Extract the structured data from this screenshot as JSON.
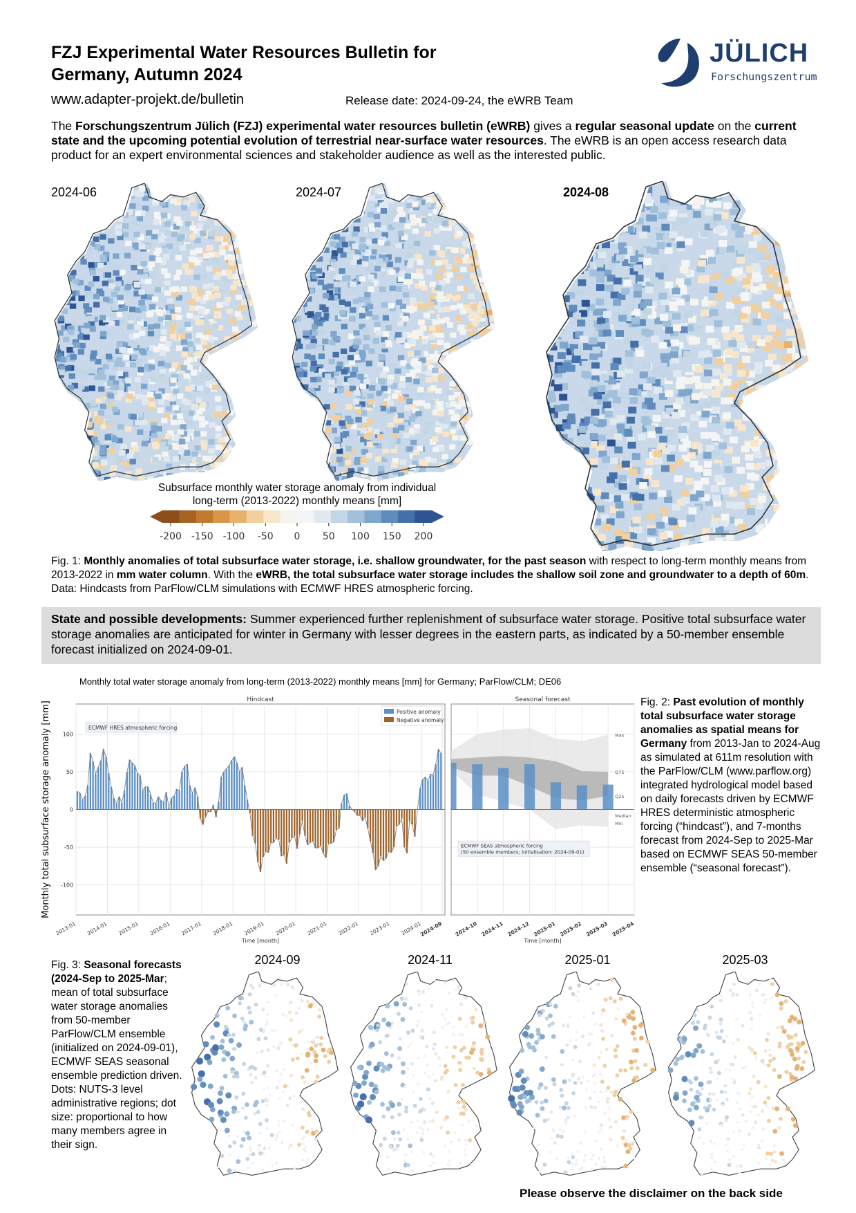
{
  "header": {
    "title_line1": "FZJ Experimental Water Resources Bulletin for",
    "title_line2": "Germany, Autumn 2024",
    "url": "www.adapter-projekt.de/bulletin",
    "release": "Release date: 2024-09-24, the eWRB Team",
    "logo": {
      "name": "JÜLICH",
      "sub": "Forschungszentrum",
      "color": "#1f3d6e"
    }
  },
  "intro": [
    {
      "t": "The ",
      "b": false
    },
    {
      "t": "Forschungszentrum Jülich (FZJ) experimental water resources bulletin (eWRB)",
      "b": true
    },
    {
      "t": " gives a ",
      "b": false
    },
    {
      "t": "regular seasonal update",
      "b": true
    },
    {
      "t": " on the ",
      "b": false
    },
    {
      "t": "current state and the upcoming potential evolution of terrestrial near-surface water resources",
      "b": true
    },
    {
      "t": ". The eWRB is an open access research data product for an expert environmental sciences and stakeholder audience as well as the interested public.",
      "b": false
    }
  ],
  "maps": [
    {
      "label": "2024-06",
      "bold": false
    },
    {
      "label": "2024-07",
      "bold": false
    },
    {
      "label": "2024-08",
      "bold": true
    }
  ],
  "colorbar": {
    "title_line1": "Subsurface monthly water storage anomaly from individual",
    "title_line2": "long-term (2013-2022) monthly means [mm]",
    "ticks": [
      "-200",
      "-150",
      "-100",
      "-50",
      "0",
      "50",
      "100",
      "150",
      "200"
    ],
    "colors": [
      "#8c4f1b",
      "#a8621f",
      "#c17a30",
      "#d99548",
      "#e8b26e",
      "#f2cf9c",
      "#f8e6cc",
      "#f6f4ef",
      "#f3f5f7",
      "#e0e8f0",
      "#c2d6e6",
      "#a0c0dc",
      "#7fa6cd",
      "#5f8bbd",
      "#446fa8",
      "#2f5494"
    ]
  },
  "fig1": [
    {
      "t": "Fig. 1: ",
      "b": false
    },
    {
      "t": "Monthly anomalies of total subsurface water storage, i.e. shallow groundwater, for the past season",
      "b": true
    },
    {
      "t": " with respect to long-term monthly means from 2013-2022 in ",
      "b": false
    },
    {
      "t": "mm water column",
      "b": true
    },
    {
      "t": ". With the ",
      "b": false
    },
    {
      "t": "eWRB, the total subsurface water storage includes the shallow soil zone and groundwater to a depth of 60m",
      "b": true
    },
    {
      "t": ". Data: Hindcasts from ParFlow/CLM simulations with ECMWF HRES atmospheric forcing.",
      "b": false
    }
  ],
  "state": [
    {
      "t": "State and possible developments:",
      "b": true
    },
    {
      "t": " Summer experienced further replenishment of subsurface water storage. Positive total subsurface water storage anomalies are anticipated for winter in Germany with lesser degrees in the eastern parts, as indicated by a 50-member ensemble forecast initialized on 2024-09-01.",
      "b": false
    }
  ],
  "chart_data": {
    "type": "bar",
    "title": "Monthly total water storage anomaly from long-term (2013-2022) monthly means [mm] for Germany; ParFlow/CLM; DE06",
    "ylabel": "Monthly total subsurface storage anomaly [mm]",
    "xlabel": "Time [month]",
    "ylim": [
      -140,
      140
    ],
    "yticks": [
      "100",
      "50",
      "0",
      "-50",
      "-100"
    ],
    "grid": true,
    "colors": {
      "positive": "#5b8fc7",
      "negative": "#a0642a",
      "band_outer": "#e3e3e3",
      "band_inner": "#a9a9a9",
      "forecast_bar": "#5b8fc7"
    },
    "hindcast": {
      "panel_title": "Hindcast",
      "annotation": "ECMWF HRES atmospheric forcing",
      "legend": [
        "Positive anomaly",
        "Negative anomaly"
      ],
      "legend_placement": "top-right",
      "xticks": [
        "2013-01",
        "2014-01",
        "2015-01",
        "2016-01",
        "2017-01",
        "2018-01",
        "2019-01",
        "2020-01",
        "2021-01",
        "2022-01",
        "2023-01",
        "2024-01",
        "2024-09"
      ],
      "monthly_values_by_year": {
        "2013": [
          24,
          22,
          13,
          18,
          32,
          75,
          64,
          47,
          56,
          65,
          80,
          70
        ],
        "2014": [
          48,
          30,
          15,
          8,
          17,
          9,
          25,
          50,
          66,
          62,
          58,
          48
        ],
        "2015": [
          45,
          25,
          30,
          30,
          20,
          9,
          8,
          17,
          12,
          10,
          23,
          3
        ],
        "2016": [
          15,
          18,
          27,
          25,
          50,
          57,
          60,
          32,
          22,
          29,
          17,
          -12
        ],
        "2017": [
          -20,
          -10,
          -3,
          -3,
          6,
          -10,
          10,
          43,
          50,
          54,
          58,
          65
        ],
        "2018": [
          70,
          62,
          50,
          56,
          32,
          13,
          -5,
          -35,
          -45,
          -70,
          -83,
          -63
        ],
        "2019": [
          -56,
          -57,
          -44,
          -44,
          -38,
          -40,
          -62,
          -60,
          -72,
          -44,
          -38,
          -35
        ],
        "2020": [
          -52,
          -33,
          -15,
          -35,
          -47,
          -44,
          -42,
          -51,
          -51,
          -48,
          -58,
          -64
        ],
        "2021": [
          -45,
          -45,
          -43,
          -27,
          -25,
          8,
          19,
          21,
          5,
          0,
          -3,
          -8
        ],
        "2022": [
          -8,
          -15,
          -10,
          -25,
          -42,
          -58,
          -80,
          -75,
          -62,
          -68,
          -65,
          -56
        ],
        "2023": [
          -57,
          -50,
          -22,
          -20,
          -12,
          -50,
          -58,
          -15,
          -20,
          -36,
          0,
          28
        ],
        "2024": [
          40,
          43,
          38,
          47,
          46,
          60,
          80,
          75
        ]
      }
    },
    "forecast": {
      "panel_title": "Seasonal forecast",
      "annotation_line1": "ECMWF SEAS atmospheric forcing",
      "annotation_line2": "(50 ensemble members; initialisation: 2024-09-01)",
      "xticks": [
        "2024-10",
        "2024-11",
        "2024-12",
        "2025-01",
        "2025-02",
        "2025-03",
        "2025-04"
      ],
      "months": [
        "2024-09",
        "2024-10",
        "2024-11",
        "2024-12",
        "2025-01",
        "2025-02",
        "2025-03"
      ],
      "median": [
        62,
        60,
        55,
        60,
        36,
        32,
        33
      ],
      "max": [
        78,
        100,
        106,
        108,
        94,
        91,
        99
      ],
      "q75": [
        67,
        69,
        71,
        69,
        64,
        51,
        50
      ],
      "q25": [
        56,
        45,
        45,
        31,
        15,
        12,
        18
      ],
      "min": [
        52,
        20,
        10,
        0,
        -26,
        -21,
        -23
      ],
      "band_labels": [
        "Max",
        "Q75",
        "Q25",
        "Median",
        "Min"
      ]
    }
  },
  "fig2": [
    {
      "t": "Fig. 2: ",
      "b": false
    },
    {
      "t": "Past evolution of monthly total subsurface water storage anomalies as spatial means for Germany",
      "b": true
    },
    {
      "t": " from 2013-Jan to 2024-Aug as simulated at 611m resolution with the ParFlow/CLM (www.parflow.org) integrated hydrological model based on daily forecasts driven by ECMWF HRES deterministic atmospheric forcing (“hindcast”), and 7-months forecast from 2024-Sep to 2025-Mar based on ECMWF SEAS 50-member ensemble (“seasonal forecast”).",
      "b": false
    }
  ],
  "fig3": [
    {
      "t": "Fig. 3: ",
      "b": false
    },
    {
      "t": "Seasonal forecasts (2024-Sep to 2025-Mar",
      "b": true
    },
    {
      "t": "; mean of total subsurface water storage anomalies from 50-member ParFlow/CLM ensemble (initialized on 2024-09-01), ECMWF SEAS seasonal ensemble prediction driven. Dots: NUTS-3 level administrative regions; dot size: proportional to how many members agree in their sign.",
      "b": false
    }
  ],
  "forecast_maps": [
    {
      "label": "2024-09"
    },
    {
      "label": "2024-11"
    },
    {
      "label": "2025-01"
    },
    {
      "label": "2025-03"
    }
  ],
  "footer": {
    "disclaimer": "Please observe the disclaimer on the back side"
  }
}
